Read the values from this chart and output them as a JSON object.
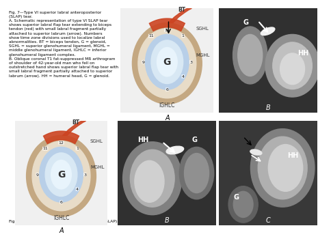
{
  "title_top": "Fig. 7—Type VI superior labral anteroposterior\n(SLAP) tear.",
  "caption_A_top": "A. Schematic representation of type VI SLAP tear\nshows superior labral flap tear extending to biceps\ntendon (red) with small labral fragment partially\nattached to superior labrum (arrow). Numbers\nshow time zone divisions used to localize labral\nabnormalities. BT = biceps tendon, G = glenoid,\nSGHL = superior glenohumeral ligament, MGHL =\nmiddle glenohumeral ligament, IGHLC = inferior\nglenohumeral ligament complex.",
  "caption_B_top": "B. Oblique coronal T1 fat-suppressed MR arthrogram\nof shoulder of 42-year-old man who fell on\noutstretched hand shows superior labral flap tear with\nsmall labral fragment partially attached to superior\nlabrum (arrow). HH = humeral head, G = glenoid.",
  "caption_bottom": "Fig. 8—Type VII superior labral anteroposterior (SLAP) tear.",
  "label_A": "A",
  "label_B": "B",
  "label_C": "C",
  "background_color": "#ffffff",
  "text_color": "#000000",
  "diagram_bg": "#e8f4f8",
  "glenoid_color": "#b8d4e8",
  "ligament_orange": "#d4622a",
  "ligament_tan": "#c4a882",
  "bt_color": "#c85520",
  "sghl_color": "#c4a882",
  "mghl_color": "#c4a882",
  "ighlc_color": "#c4a882",
  "title_fontsize": 6.5,
  "caption_fontsize": 5.5,
  "label_fontsize": 8,
  "grid_color": "#cccccc"
}
